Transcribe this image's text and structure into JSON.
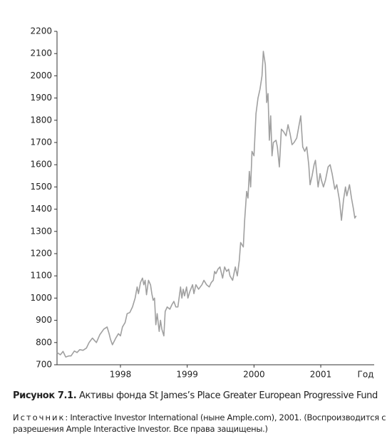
{
  "chart_data": {
    "type": "line",
    "x": [
      1997.05,
      1997.1,
      1997.14,
      1997.18,
      1997.23,
      1997.26,
      1997.31,
      1997.35,
      1997.39,
      1997.44,
      1997.49,
      1997.53,
      1997.58,
      1997.64,
      1997.69,
      1997.75,
      1997.8,
      1997.83,
      1997.85,
      1997.88,
      1997.93,
      1997.97,
      1998.0,
      1998.03,
      1998.07,
      1998.1,
      1998.14,
      1998.18,
      1998.22,
      1998.25,
      1998.27,
      1998.3,
      1998.33,
      1998.35,
      1998.37,
      1998.39,
      1998.42,
      1998.45,
      1998.47,
      1998.49,
      1998.51,
      1998.53,
      1998.55,
      1998.58,
      1998.6,
      1998.62,
      1998.65,
      1998.67,
      1998.7,
      1998.74,
      1998.77,
      1998.8,
      1998.83,
      1998.86,
      1998.9,
      1998.92,
      1998.94,
      1998.96,
      1998.99,
      1999.01,
      1999.04,
      1999.08,
      1999.1,
      1999.13,
      1999.17,
      1999.22,
      1999.25,
      1999.29,
      1999.33,
      1999.36,
      1999.39,
      1999.41,
      1999.43,
      1999.46,
      1999.49,
      1999.53,
      1999.56,
      1999.59,
      1999.62,
      1999.64,
      1999.68,
      1999.72,
      1999.75,
      1999.78,
      1999.8,
      1999.84,
      1999.86,
      1999.89,
      1999.91,
      1999.93,
      1999.95,
      1999.97,
      2000.0,
      2000.03,
      2000.06,
      2000.09,
      2000.12,
      2000.14,
      2000.17,
      2000.19,
      2000.21,
      2000.23,
      2000.25,
      2000.27,
      2000.29,
      2000.33,
      2000.35,
      2000.38,
      2000.41,
      2000.44,
      2000.48,
      2000.51,
      2000.54,
      2000.57,
      2000.6,
      2000.64,
      2000.67,
      2000.7,
      2000.73,
      2000.76,
      2000.79,
      2000.82,
      2000.84,
      2000.87,
      2000.9,
      2000.92,
      2000.96,
      2000.99,
      2001.01,
      2001.04,
      2001.07,
      2001.11,
      2001.14,
      2001.17,
      2001.21,
      2001.24,
      2001.28,
      2001.31,
      2001.34,
      2001.37,
      2001.39,
      2001.43,
      2001.46,
      2001.49,
      2001.51,
      2001.53
    ],
    "values": [
      755,
      745,
      760,
      735,
      740,
      740,
      762,
      755,
      768,
      765,
      775,
      800,
      820,
      800,
      835,
      860,
      870,
      840,
      815,
      790,
      820,
      840,
      830,
      870,
      890,
      930,
      935,
      960,
      1000,
      1050,
      1020,
      1070,
      1090,
      1060,
      1080,
      1015,
      1080,
      1060,
      1020,
      990,
      1000,
      880,
      930,
      850,
      900,
      860,
      830,
      940,
      960,
      950,
      970,
      985,
      960,
      960,
      1050,
      1000,
      1040,
      1010,
      1050,
      1000,
      1030,
      1060,
      1020,
      1060,
      1040,
      1060,
      1080,
      1060,
      1050,
      1070,
      1080,
      1120,
      1110,
      1130,
      1140,
      1090,
      1140,
      1120,
      1130,
      1100,
      1080,
      1140,
      1100,
      1170,
      1250,
      1230,
      1350,
      1480,
      1450,
      1570,
      1500,
      1660,
      1640,
      1830,
      1900,
      1940,
      2000,
      2110,
      2050,
      1880,
      1920,
      1710,
      1820,
      1640,
      1700,
      1710,
      1680,
      1590,
      1760,
      1750,
      1730,
      1780,
      1740,
      1690,
      1700,
      1720,
      1770,
      1820,
      1680,
      1660,
      1680,
      1600,
      1510,
      1550,
      1600,
      1620,
      1500,
      1560,
      1530,
      1500,
      1530,
      1590,
      1600,
      1560,
      1490,
      1510,
      1440,
      1350,
      1440,
      1500,
      1460,
      1510,
      1450,
      1400,
      1360,
      1370
    ],
    "color": "#a0a0a0",
    "x_label": "Год",
    "xlim": [
      1997.05,
      2001.8
    ],
    "xticks": [
      1998,
      1999,
      2000,
      2001
    ],
    "ylim": [
      700,
      2200
    ],
    "yticks": [
      700,
      800,
      900,
      1000,
      1100,
      1200,
      1300,
      1400,
      1500,
      1600,
      1700,
      1800,
      1900,
      2000,
      2100,
      2200
    ],
    "figure_label": "Рисунок 7.1.",
    "caption": "Активы фонда St James’s Place Greater European Progressive Fund",
    "source_label": "Источник",
    "source_text": ": Interactive Investor International (ныне Ample.com), 2001. (Воспроизводится с разрешения Ample Interactive Investor. Все права защищены.)"
  }
}
